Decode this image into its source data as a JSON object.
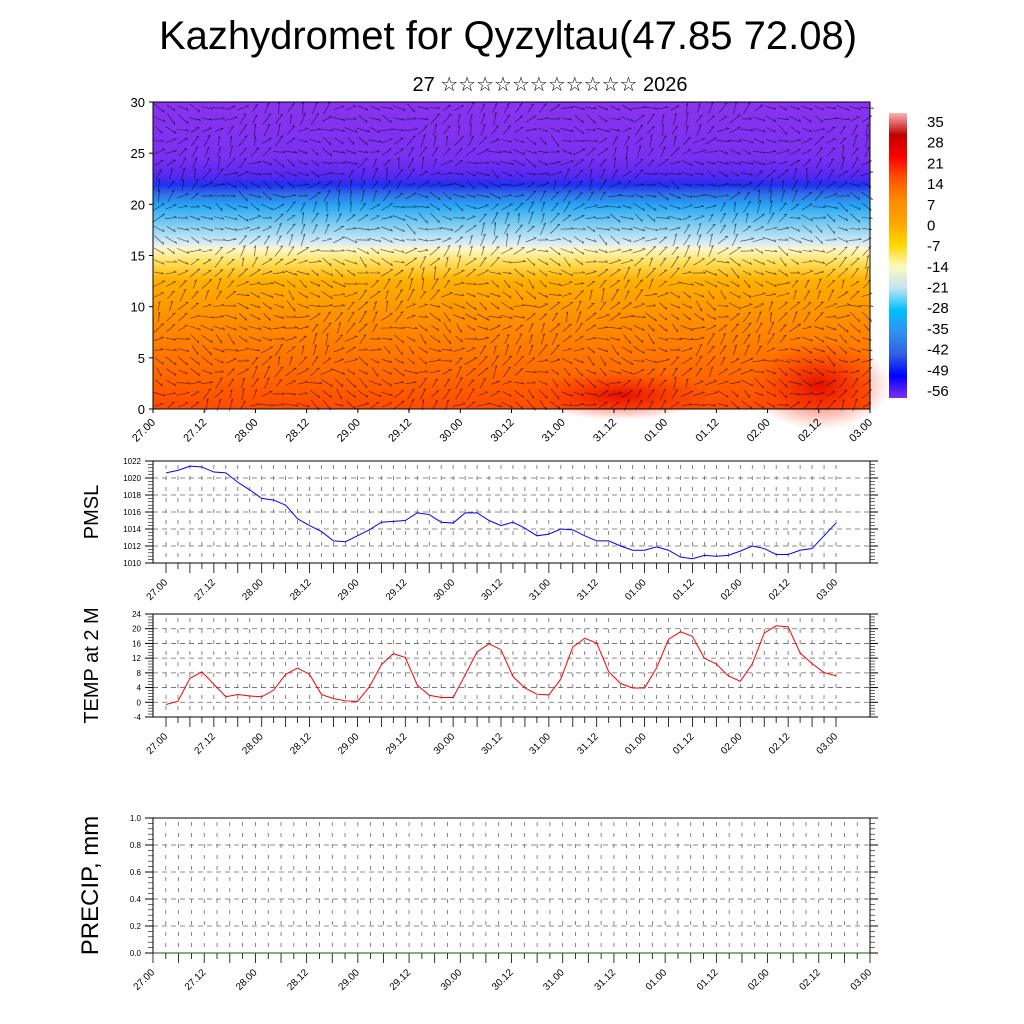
{
  "title": "Kazhydromet for Qyzyltau(47.85 72.08)",
  "subtitle": "27 ☆☆☆☆☆☆☆☆☆☆☆ 2026",
  "chart_data": [
    {
      "type": "heatmap",
      "name": "temperature-wind-cross-section",
      "ylim": [
        0,
        30
      ],
      "yticks": [
        0,
        5,
        10,
        15,
        20,
        25,
        30
      ],
      "xticks": [
        "27.00",
        "27.12",
        "28.00",
        "28.12",
        "29.00",
        "29.12",
        "30.00",
        "30.12",
        "31.00",
        "31.12",
        "01.00",
        "01.12",
        "02.00",
        "02.12",
        "03.00"
      ],
      "colorbar": {
        "labels": [
          "35",
          "28",
          "21",
          "14",
          "7",
          "0",
          "-7",
          "-14",
          "-21",
          "-28",
          "-35",
          "-42",
          "-49",
          "-56"
        ],
        "colors": [
          "#f7b6b6",
          "#c00000",
          "#ff0000",
          "#ff5500",
          "#ff8c00",
          "#ffa500",
          "#ffd700",
          "#fff8c0",
          "#bfe3f2",
          "#00c0ff",
          "#3090f0",
          "#3060e0",
          "#0000ff",
          "#8030f0"
        ]
      }
    },
    {
      "type": "line",
      "name": "pmsl",
      "ylabel": "PMSL",
      "ylim": [
        1010,
        1022
      ],
      "yticks": [
        "1010",
        "1012",
        "1014",
        "1016",
        "1018",
        "1020",
        "1022"
      ],
      "xticks": [
        "27.00",
        "27.12",
        "28.00",
        "28.12",
        "29.00",
        "29.12",
        "30.00",
        "30.12",
        "31.00",
        "31.12",
        "01.00",
        "01.12",
        "02.00",
        "02.12",
        "03.00"
      ],
      "color": "#0000ff",
      "values": [
        1020.6,
        1020.9,
        1021.4,
        1021.3,
        1020.7,
        1020.6,
        1019.5,
        1018.6,
        1017.6,
        1017.4,
        1016.8,
        1015.2,
        1014.4,
        1013.7,
        1012.6,
        1012.5,
        1013.2,
        1013.9,
        1014.8,
        1014.9,
        1015.0,
        1015.9,
        1015.7,
        1014.8,
        1014.7,
        1015.9,
        1015.9,
        1015.0,
        1014.4,
        1014.8,
        1014.1,
        1013.2,
        1013.4,
        1014.0,
        1013.9,
        1013.2,
        1012.6,
        1012.6,
        1012.0,
        1011.5,
        1011.5,
        1011.9,
        1011.5,
        1010.7,
        1010.5,
        1010.9,
        1010.8,
        1010.9,
        1011.4,
        1012.0,
        1011.7,
        1011.0,
        1011.0,
        1011.5,
        1011.7,
        1013.2,
        1014.7
      ]
    },
    {
      "type": "line",
      "name": "temp-2m",
      "ylabel": "TEMP at 2 M",
      "ylim": [
        -4,
        24
      ],
      "yticks": [
        "-4",
        "0",
        "4",
        "8",
        "12",
        "16",
        "20",
        "24"
      ],
      "xticks": [
        "27.00",
        "27.12",
        "28.00",
        "28.12",
        "29.00",
        "29.12",
        "30.00",
        "30.12",
        "31.00",
        "31.12",
        "01.00",
        "01.12",
        "02.00",
        "02.12",
        "03.00"
      ],
      "color": "#ff0000",
      "values": [
        -0.6,
        0.3,
        6.5,
        8.3,
        4.9,
        1.5,
        2.1,
        1.7,
        1.5,
        3.3,
        7.6,
        9.3,
        7.6,
        2.1,
        1.0,
        0.4,
        0.2,
        4.2,
        10.2,
        13.2,
        12.2,
        4.7,
        1.9,
        1.3,
        1.3,
        7.4,
        13.7,
        15.9,
        14.3,
        7.0,
        3.9,
        2.2,
        2.0,
        6.3,
        15.0,
        17.4,
        16.1,
        8.3,
        5.1,
        3.9,
        3.9,
        9.3,
        17.1,
        19.2,
        17.9,
        12.0,
        10.4,
        7.2,
        5.7,
        10.4,
        18.8,
        20.8,
        20.5,
        13.4,
        10.5,
        8.1,
        7.2
      ]
    },
    {
      "type": "bar",
      "name": "precip",
      "ylabel": "PRECIP, mm",
      "ylim": [
        0,
        1
      ],
      "yticks": [
        "0.0",
        "0.2",
        "0.4",
        "0.6",
        "0.8",
        "1.0"
      ],
      "xticks": [
        "27.00",
        "27.12",
        "28.00",
        "28.12",
        "29.00",
        "29.12",
        "30.00",
        "30.12",
        "31.00",
        "31.12",
        "01.00",
        "01.12",
        "02.00",
        "02.12",
        "03.00"
      ],
      "color": "#006400",
      "values": []
    }
  ]
}
